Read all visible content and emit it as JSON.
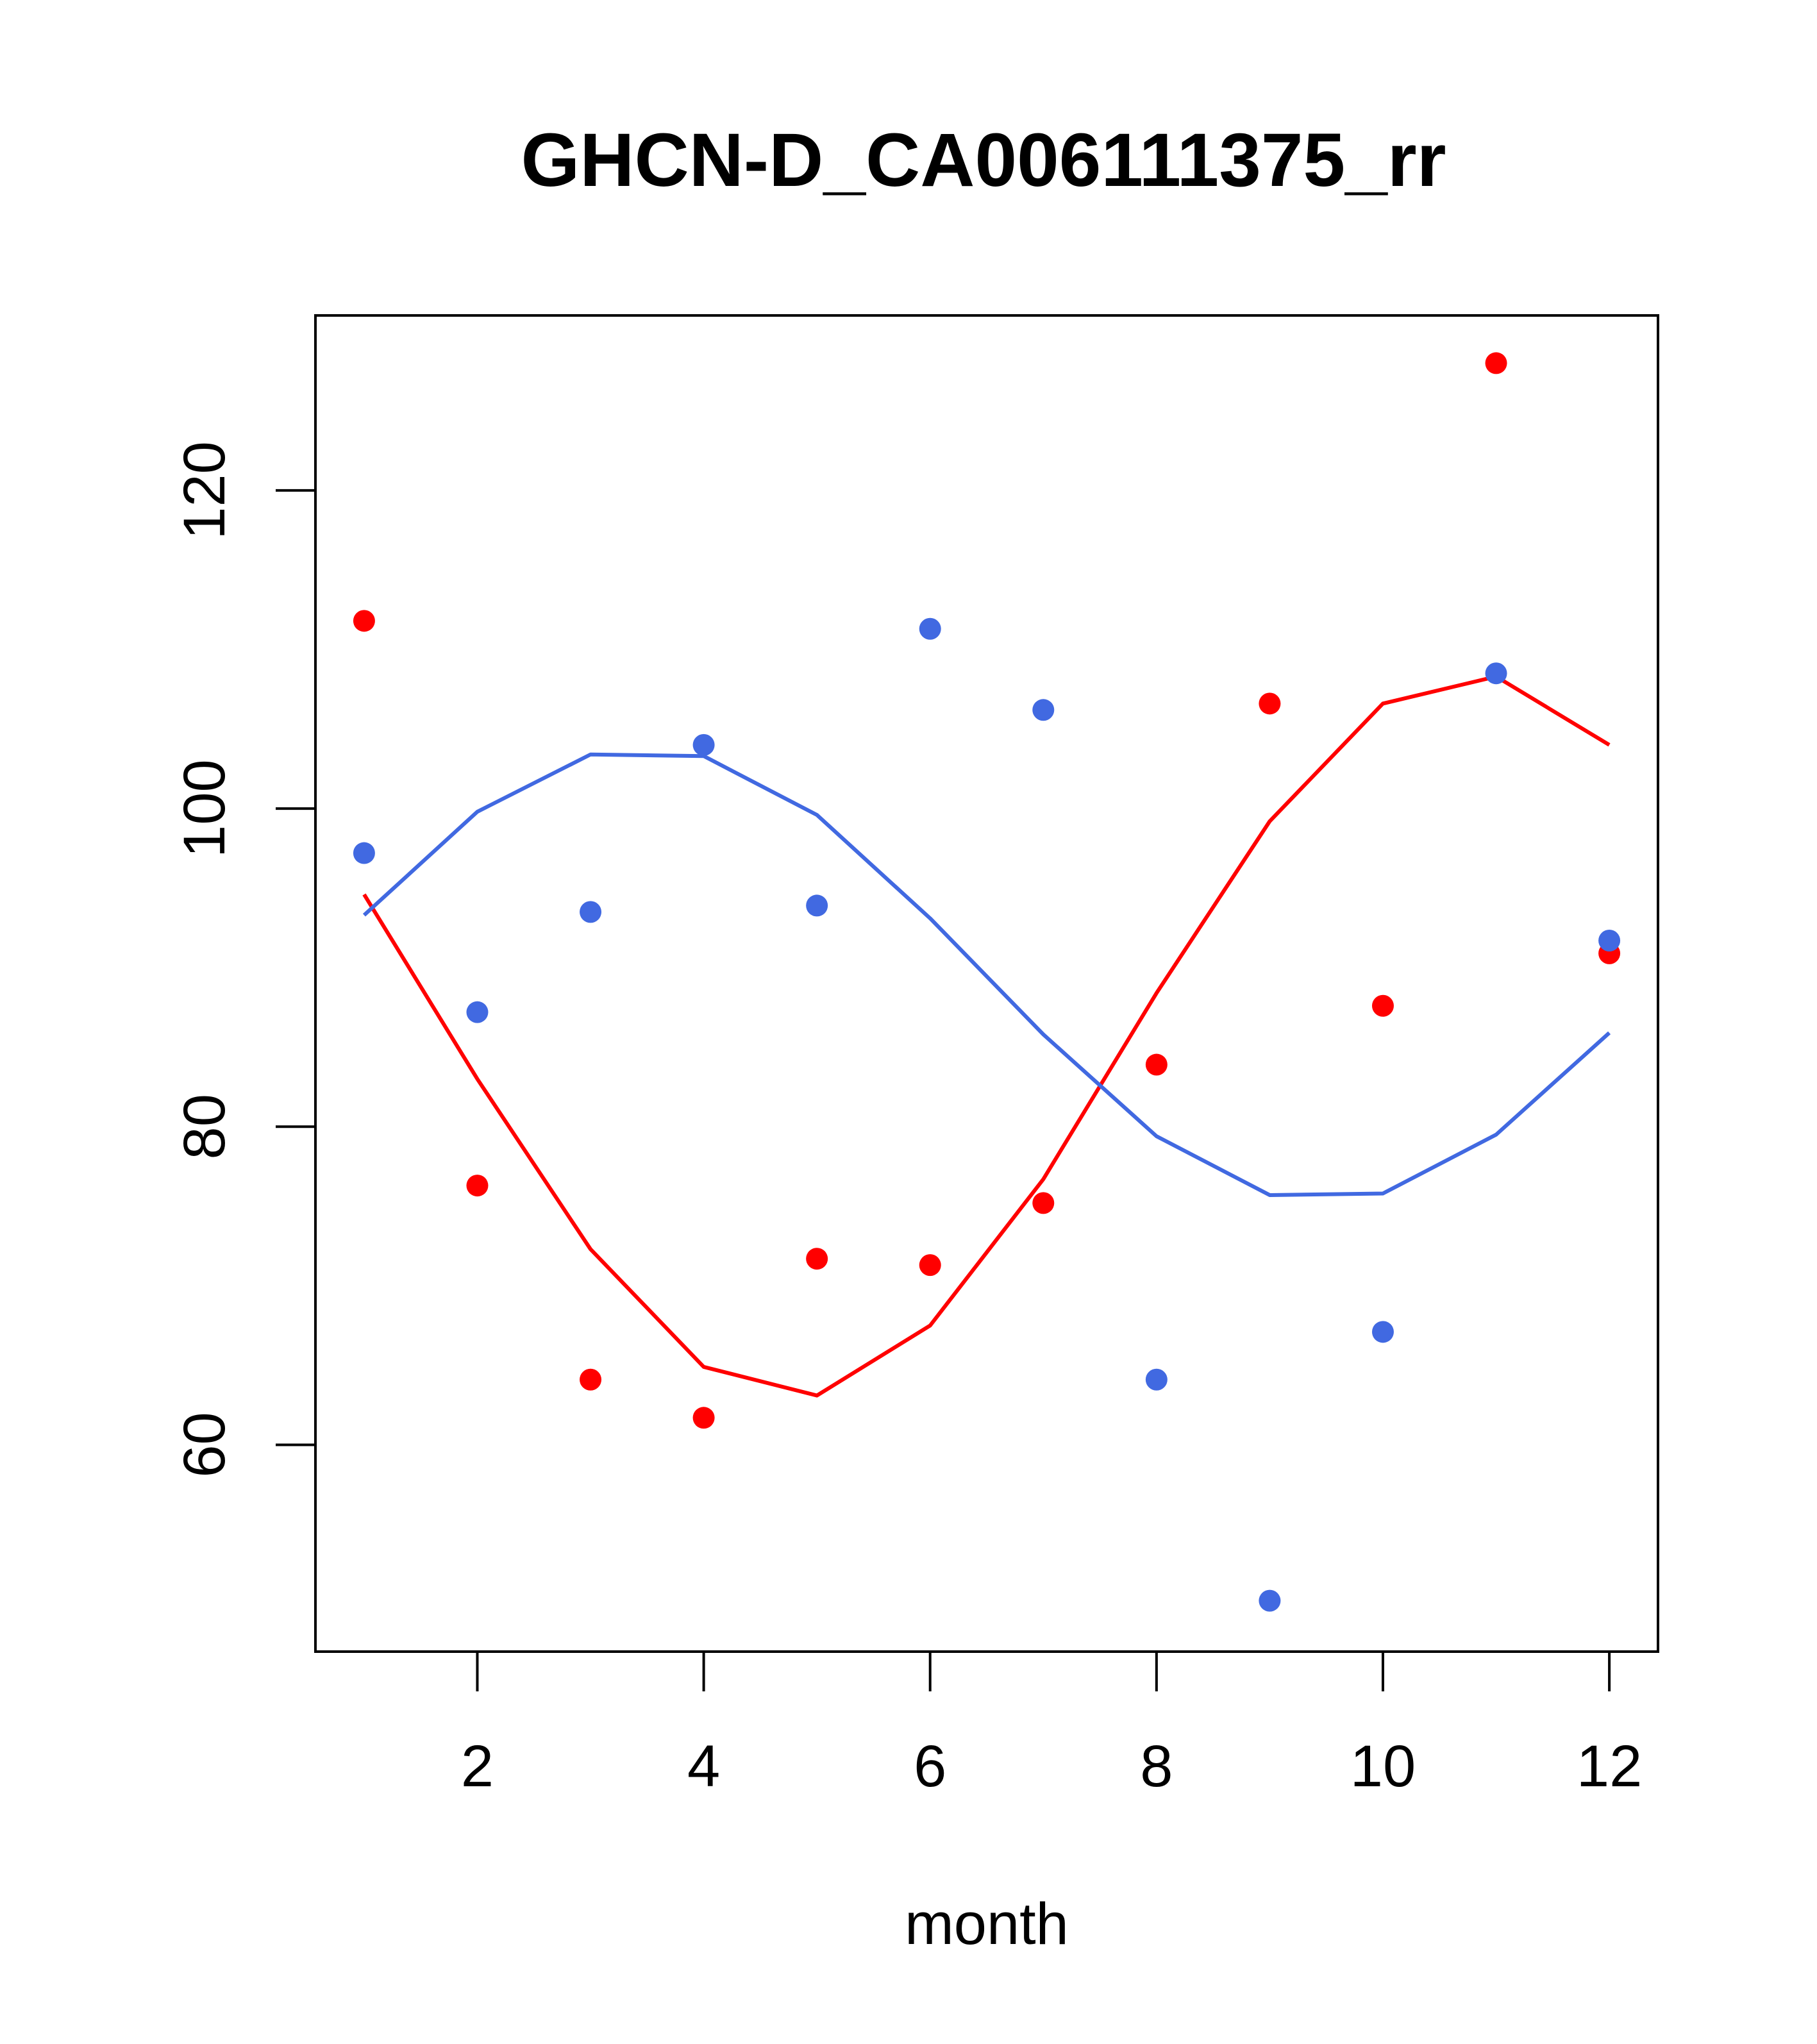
{
  "chart_data": {
    "type": "scatter",
    "title": "GHCN-D_CA006111375_rr",
    "xlabel": "month",
    "ylabel": "",
    "xlim": [
      0.57,
      12.43
    ],
    "ylim": [
      47,
      131
    ],
    "xticks": [
      2,
      4,
      6,
      8,
      10,
      12
    ],
    "yticks": [
      60,
      80,
      100,
      120
    ],
    "grid": false,
    "series": [
      {
        "color": "#ff0000",
        "x": [
          1,
          2,
          3,
          4,
          5,
          6,
          7,
          8,
          9,
          10,
          11,
          12
        ],
        "points": [
          111.8,
          76.3,
          64.1,
          61.7,
          71.7,
          71.3,
          75.2,
          83.9,
          106.6,
          87.6,
          128.0,
          90.9
        ],
        "fit": [
          94.6,
          83.0,
          72.3,
          64.9,
          63.1,
          67.5,
          76.7,
          88.4,
          99.2,
          106.6,
          108.3,
          104.0
        ]
      },
      {
        "color": "#4169e1",
        "x": [
          1,
          2,
          3,
          4,
          5,
          6,
          7,
          8,
          9,
          10,
          11,
          12
        ],
        "points": [
          97.2,
          87.2,
          93.5,
          104.0,
          93.9,
          111.3,
          106.2,
          64.1,
          50.2,
          67.1,
          108.5,
          91.7
        ],
        "fit": [
          93.3,
          99.8,
          103.4,
          103.3,
          99.6,
          93.1,
          85.8,
          79.4,
          75.7,
          75.8,
          79.5,
          85.9
        ]
      }
    ]
  }
}
